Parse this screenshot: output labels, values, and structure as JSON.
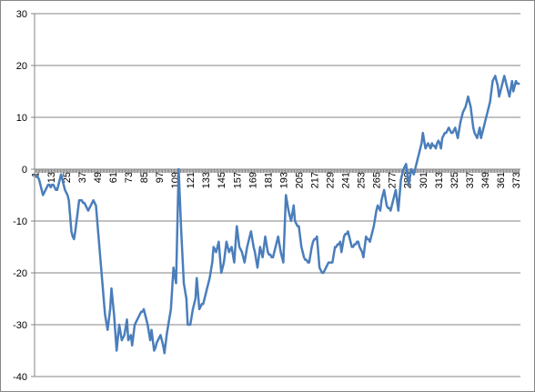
{
  "chart_data": {
    "type": "line",
    "color": "#4a7ebb",
    "grid": true,
    "ylim": [
      -40,
      30
    ],
    "yticks": [
      -40,
      -30,
      -20,
      -10,
      0,
      10,
      20,
      30
    ],
    "categories": [
      "1",
      null,
      null,
      null,
      null,
      null,
      null,
      null,
      null,
      null,
      null,
      null,
      "13",
      null,
      null,
      null,
      null,
      null,
      null,
      null,
      null,
      null,
      null,
      null,
      "25",
      null,
      null,
      null,
      null,
      null,
      null,
      null,
      null,
      null,
      null,
      null,
      "37",
      null,
      null,
      null,
      null,
      null,
      null,
      null,
      null,
      null,
      null,
      null,
      "49",
      null,
      null,
      null,
      null,
      null,
      null,
      null,
      null,
      null,
      null,
      null,
      "61",
      null,
      null,
      null,
      null,
      null,
      null,
      null,
      null,
      null,
      null,
      null,
      "73",
      null,
      null,
      null,
      null,
      null,
      null,
      null,
      null,
      null,
      null,
      null,
      "85",
      null,
      null,
      null,
      null,
      null,
      null,
      null,
      null,
      null,
      null,
      null,
      "97",
      null,
      null,
      null,
      null,
      null,
      null,
      null,
      null,
      null,
      null,
      null,
      "109",
      null,
      null,
      null,
      null,
      null,
      null,
      null,
      null,
      null,
      null,
      null,
      "121",
      null,
      null,
      null,
      null,
      null,
      null,
      null,
      null,
      null,
      null,
      null,
      "133",
      null,
      null,
      null,
      null,
      null,
      null,
      null,
      null,
      null,
      null,
      null,
      "145",
      null,
      null,
      null,
      null,
      null,
      null,
      null,
      null,
      null,
      null,
      null,
      "157",
      null,
      null,
      null,
      null,
      null,
      null,
      null,
      null,
      null,
      null,
      null,
      "169",
      null,
      null,
      null,
      null,
      null,
      null,
      null,
      null,
      null,
      null,
      null,
      "181",
      null,
      null,
      null,
      null,
      null,
      null,
      null,
      null,
      null,
      null,
      null,
      "193",
      null,
      null,
      null,
      null,
      null,
      null,
      null,
      null,
      null,
      null,
      null,
      "205",
      null,
      null,
      null,
      null,
      null,
      null,
      null,
      null,
      null,
      null,
      null,
      "217",
      null,
      null,
      null,
      null,
      null,
      null,
      null,
      null,
      null,
      null,
      null,
      "229",
      null,
      null,
      null,
      null,
      null,
      null,
      null,
      null,
      null,
      null,
      null,
      "241",
      null,
      null,
      null,
      null,
      null,
      null,
      null,
      null,
      null,
      null,
      null,
      "253",
      null,
      null,
      null,
      null,
      null,
      null,
      null,
      null,
      null,
      null,
      null,
      "265",
      null,
      null,
      null,
      null,
      null,
      null,
      null,
      null,
      null,
      null,
      null,
      "277",
      null,
      null,
      null,
      null,
      null,
      null,
      null,
      null,
      null,
      null,
      null,
      "289",
      null,
      null,
      null,
      null,
      null,
      null,
      null,
      null,
      null,
      null,
      null,
      "301",
      null,
      null,
      null,
      null,
      null,
      null,
      null,
      null,
      null,
      null,
      null,
      "313",
      null,
      null,
      null,
      null,
      null,
      null,
      null,
      null,
      null,
      null,
      null,
      "325",
      null,
      null,
      null,
      null,
      null,
      null,
      null,
      null,
      null,
      null,
      null,
      "337",
      null,
      null,
      null,
      null,
      null,
      null,
      null,
      null,
      null,
      null,
      null,
      "349",
      null,
      null,
      null,
      null,
      null,
      null,
      null,
      null,
      null,
      null,
      null,
      "361",
      null,
      null,
      null,
      null,
      null,
      null,
      null,
      null,
      null,
      null,
      null,
      "373",
      null,
      null,
      null
    ],
    "values": [
      -1,
      -1.5,
      -1.5,
      -2,
      -3,
      -4,
      -5,
      -4.5,
      -4,
      -3.5,
      -3,
      -3,
      -3.5,
      -3,
      -3,
      -3.5,
      -4,
      -4,
      -3,
      -2,
      -1,
      -2,
      -3,
      -4,
      -4.5,
      -5,
      -6,
      -9,
      -12,
      -13,
      -13.5,
      -12,
      -10,
      -8,
      -6,
      -6,
      -6,
      -6.5,
      -6.5,
      -7,
      -7.5,
      -8,
      -7.5,
      -7,
      -6.5,
      -6,
      -6.5,
      -7,
      -10,
      -13,
      -16,
      -19,
      -22,
      -25,
      -28,
      -29.5,
      -31,
      -29,
      -27,
      -23,
      -25.5,
      -28,
      -31.5,
      -35,
      -32.5,
      -30,
      -31.5,
      -33,
      -32.5,
      -32,
      -30.5,
      -29,
      -33,
      -32.5,
      -32,
      -34,
      -32,
      -30,
      -29.5,
      -29,
      -28.5,
      -28,
      -27.5,
      -27.5,
      -27,
      -28,
      -29,
      -30,
      -31.5,
      -33,
      -31,
      -33,
      -35,
      -34.5,
      -33.5,
      -33,
      -32.5,
      -32,
      -33,
      -34,
      -35.5,
      -33.5,
      -31.5,
      -30,
      -28.5,
      -27,
      -23,
      -19,
      -20.5,
      -22,
      -11,
      0,
      -6,
      -12,
      -17,
      -22,
      -23.5,
      -25,
      -30,
      -30,
      -30,
      -28.5,
      -27,
      -26,
      -25,
      -21,
      -24,
      -27,
      -26.5,
      -26,
      -26,
      -25,
      -24,
      -23,
      -22,
      -21,
      -19.5,
      -18,
      -15,
      -15.5,
      -16,
      -15,
      -14,
      -17,
      -20,
      -19,
      -18,
      -16,
      -14,
      -15,
      -16,
      -15.5,
      -15,
      -16.5,
      -18,
      -14.5,
      -11,
      -13,
      -15,
      -15.5,
      -16,
      -17,
      -18,
      -16.5,
      -15,
      -14,
      -13,
      -12,
      -13.5,
      -15,
      -16,
      -17.5,
      -19,
      -17,
      -15,
      -16,
      -17,
      -15,
      -13,
      -14.5,
      -16,
      -16.5,
      -16.5,
      -17,
      -17,
      -16,
      -15,
      -14,
      -13,
      -14.5,
      -16,
      -17,
      -18,
      -11.5,
      -5,
      -6.5,
      -8,
      -9,
      -10,
      -8.5,
      -7,
      -10,
      -10.5,
      -11,
      -11,
      -13,
      -15,
      -16,
      -17,
      -17.5,
      -17.5,
      -18,
      -18,
      -16.5,
      -15,
      -14,
      -13.5,
      -13.5,
      -13,
      -16,
      -19,
      -19.5,
      -20,
      -20,
      -19.5,
      -19,
      -18.5,
      -18,
      -18,
      -18,
      -18,
      -16.5,
      -15,
      -15,
      -14.5,
      -14.5,
      -14,
      -16,
      -14.5,
      -13,
      -12.5,
      -12.5,
      -12,
      -13,
      -14,
      -15,
      -15,
      -14.5,
      -14.5,
      -14,
      -14,
      -15,
      -15.5,
      -16,
      -17,
      -15,
      -13,
      -13.5,
      -13.5,
      -14,
      -13,
      -12,
      -11,
      -9.5,
      -8,
      -7,
      -7.5,
      -8,
      -6,
      -5,
      -4,
      -5.5,
      -7,
      -7.5,
      -7.5,
      -8,
      -7,
      -6,
      -5,
      -4,
      -6,
      -8,
      -5,
      -2,
      -1,
      0,
      0.5,
      1,
      -1,
      -3,
      -1.5,
      0,
      -0.5,
      -1,
      0,
      1,
      2,
      3,
      4,
      5,
      7,
      5.5,
      4,
      4.5,
      5,
      4.5,
      4,
      5,
      4.5,
      4.5,
      4,
      5,
      5.5,
      5,
      4,
      6,
      6.5,
      7,
      7,
      7.5,
      8,
      7.5,
      7,
      7,
      7.5,
      8,
      7,
      6,
      7.5,
      9,
      10,
      11,
      11.5,
      12,
      13,
      14,
      13,
      12,
      10,
      8,
      7,
      6.5,
      6,
      7,
      8,
      6,
      7,
      8,
      9,
      10,
      11,
      12,
      13,
      15,
      17,
      17.5,
      18,
      17,
      16,
      14,
      15,
      16,
      17,
      18,
      17,
      16,
      15,
      14,
      15.5,
      17,
      15,
      16,
      17,
      16.5,
      16.5,
      16.5
    ]
  }
}
